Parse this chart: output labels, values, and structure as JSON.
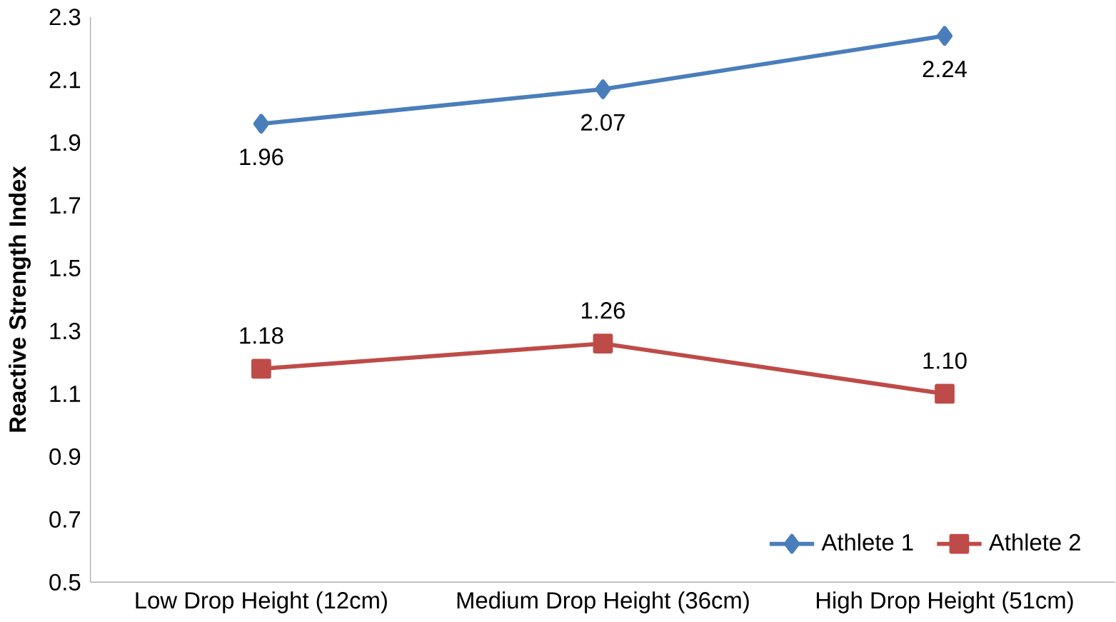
{
  "chart_data": {
    "type": "line",
    "ylabel": "Reactive Strength Index",
    "categories": [
      "Low Drop Height (12cm)",
      "Medium Drop Height (36cm)",
      "High Drop Height (51cm)"
    ],
    "series": [
      {
        "name": "Athlete 1",
        "color": "#4a7ebb",
        "marker": "diamond",
        "values": [
          1.96,
          2.07,
          2.24
        ],
        "value_labels": [
          "1.96",
          "2.07",
          "2.24"
        ]
      },
      {
        "name": "Athlete 2",
        "color": "#be4b48",
        "marker": "square",
        "values": [
          1.18,
          1.26,
          1.1
        ],
        "value_labels": [
          "1.18",
          "1.26",
          "1.10"
        ]
      }
    ],
    "ylim": [
      0.5,
      2.3
    ],
    "yticks": [
      0.5,
      0.7,
      0.9,
      1.1,
      1.3,
      1.5,
      1.7,
      1.9,
      2.1,
      2.3
    ],
    "legend": "bottom right",
    "grid": false
  }
}
